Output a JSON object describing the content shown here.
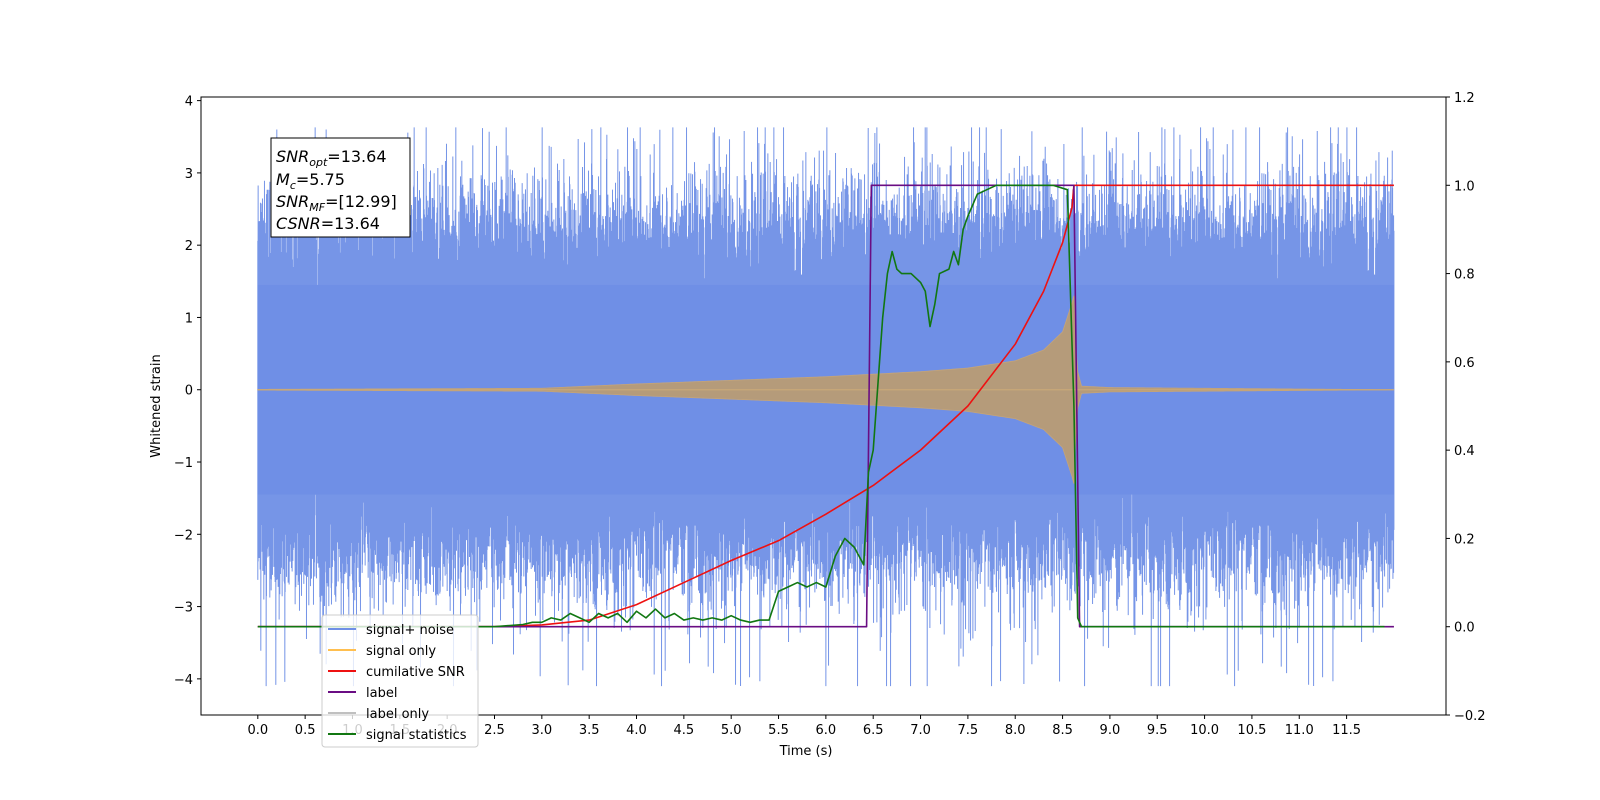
{
  "chart_data": {
    "type": "line",
    "title": "",
    "xlabel": "Time (s)",
    "ylabel": "Whitened strain",
    "ylabel_right": "",
    "xlim": [
      -0.6,
      12.55
    ],
    "ylim": [
      -4.5,
      4.05
    ],
    "ylim_right": [
      -0.2,
      1.2
    ],
    "x_ticks": [
      0.0,
      0.5,
      1.0,
      1.5,
      2.0,
      2.5,
      3.0,
      3.5,
      4.0,
      4.5,
      5.0,
      5.5,
      6.0,
      6.5,
      7.0,
      7.5,
      8.0,
      8.5,
      9.0,
      9.5,
      10.0,
      10.5,
      11.0,
      11.5
    ],
    "x_tick_labels": [
      "0.0",
      "0.5",
      "1.0",
      "1.5",
      "2.0",
      "2.5",
      "3.0",
      "3.5",
      "4.0",
      "4.5",
      "5.0",
      "5.5",
      "6.0",
      "6.5",
      "7.0",
      "7.5",
      "8.0",
      "8.5",
      "9.0",
      "9.5",
      "10.0",
      "10.5",
      "11.0",
      "11.5"
    ],
    "y_ticks": [
      4,
      3,
      2,
      1,
      0,
      -1,
      -2,
      -3,
      -4
    ],
    "y_tick_labels": [
      "4",
      "3",
      "2",
      "1",
      "0",
      "−1",
      "−2",
      "−3",
      "−4"
    ],
    "y_ticks_right": [
      1.2,
      1.0,
      0.8,
      0.6,
      0.4,
      0.2,
      0.0,
      -0.2
    ],
    "y_tick_labels_right": [
      "1.2",
      "1.0",
      "0.8",
      "0.6",
      "0.4",
      "0.2",
      "0.0",
      "−0.2"
    ],
    "grid": false,
    "legend_position": "lower-left",
    "annotation": {
      "snr_opt_symbol": "SNR",
      "snr_opt_sub": "opt",
      "snr_opt_value": "=13.64",
      "mc_symbol": "M",
      "mc_sub": "c",
      "mc_value": "=5.75",
      "snr_mf_symbol": "SNR",
      "snr_mf_sub": "MF",
      "snr_mf_value": "=[12.99]",
      "csnr_symbol": "CSNR",
      "csnr_value": "=13.64"
    },
    "series": [
      {
        "name": "signal+ noise",
        "axis": "left",
        "color": "#6f8fe6",
        "kind": "noise-band",
        "x_range": [
          0.0,
          12.0
        ],
        "typical_range": [
          -2.2,
          2.2
        ],
        "peak_max": 3.63,
        "peak_min": -4.1
      },
      {
        "name": "signal only",
        "axis": "left",
        "color": "#ffbf4f",
        "kind": "chirp",
        "x_range": [
          0.0,
          12.0
        ],
        "merger_time": 8.62,
        "envelope": [
          [
            0.0,
            0.005
          ],
          [
            3.0,
            0.02
          ],
          [
            4.0,
            0.08
          ],
          [
            5.0,
            0.13
          ],
          [
            6.0,
            0.18
          ],
          [
            7.0,
            0.25
          ],
          [
            7.5,
            0.3
          ],
          [
            8.0,
            0.4
          ],
          [
            8.3,
            0.55
          ],
          [
            8.5,
            0.8
          ],
          [
            8.6,
            1.2
          ],
          [
            8.62,
            1.3
          ],
          [
            8.65,
            0.3
          ],
          [
            8.7,
            0.05
          ],
          [
            9.0,
            0.03
          ],
          [
            12.0,
            0.0
          ]
        ]
      },
      {
        "name": "cumilative SNR",
        "axis": "right",
        "color": "#ee1111",
        "x": [
          0.0,
          1.0,
          2.0,
          2.5,
          3.0,
          3.5,
          4.0,
          4.5,
          5.0,
          5.5,
          6.0,
          6.5,
          7.0,
          7.5,
          8.0,
          8.3,
          8.5,
          8.6,
          8.62,
          12.0
        ],
        "y": [
          0.0,
          0.0,
          0.0,
          0.0,
          0.004,
          0.015,
          0.05,
          0.1,
          0.15,
          0.195,
          0.255,
          0.32,
          0.4,
          0.5,
          0.64,
          0.76,
          0.87,
          0.95,
          1.0,
          1.0
        ]
      },
      {
        "name": "label",
        "axis": "right",
        "color": "#6a0d83",
        "x": [
          0.0,
          6.43,
          6.48,
          8.62,
          8.68,
          12.0
        ],
        "y": [
          0.0,
          0.0,
          1.0,
          1.0,
          0.0,
          0.0
        ]
      },
      {
        "name": "label only",
        "axis": "right",
        "color": "#c0c0c0",
        "hidden_in_plot": true
      },
      {
        "name": "signal statistics",
        "axis": "right",
        "color": "#117711",
        "x": [
          0.0,
          0.5,
          1.0,
          1.5,
          2.0,
          2.5,
          2.8,
          2.9,
          3.0,
          3.1,
          3.2,
          3.3,
          3.4,
          3.5,
          3.6,
          3.7,
          3.8,
          3.9,
          4.0,
          4.1,
          4.2,
          4.3,
          4.4,
          4.5,
          4.6,
          4.7,
          4.8,
          4.9,
          5.0,
          5.1,
          5.2,
          5.3,
          5.4,
          5.5,
          5.6,
          5.7,
          5.8,
          5.9,
          6.0,
          6.1,
          6.2,
          6.3,
          6.4,
          6.45,
          6.5,
          6.55,
          6.6,
          6.65,
          6.7,
          6.75,
          6.8,
          6.9,
          7.0,
          7.05,
          7.1,
          7.15,
          7.2,
          7.3,
          7.35,
          7.4,
          7.45,
          7.5,
          7.6,
          7.7,
          7.8,
          7.9,
          8.0,
          8.2,
          8.4,
          8.55,
          8.62,
          8.66,
          8.7,
          9.0,
          10.0,
          11.0,
          11.9
        ],
        "y": [
          0.0,
          0.0,
          0.0,
          0.0,
          0.0,
          0.0,
          0.005,
          0.01,
          0.01,
          0.02,
          0.015,
          0.03,
          0.02,
          0.01,
          0.03,
          0.02,
          0.03,
          0.01,
          0.035,
          0.02,
          0.04,
          0.02,
          0.03,
          0.015,
          0.02,
          0.015,
          0.02,
          0.015,
          0.025,
          0.015,
          0.01,
          0.015,
          0.015,
          0.08,
          0.09,
          0.1,
          0.09,
          0.1,
          0.09,
          0.16,
          0.2,
          0.18,
          0.14,
          0.35,
          0.4,
          0.55,
          0.7,
          0.8,
          0.85,
          0.81,
          0.8,
          0.8,
          0.78,
          0.76,
          0.68,
          0.73,
          0.8,
          0.81,
          0.85,
          0.82,
          0.9,
          0.93,
          0.98,
          0.99,
          1.0,
          1.0,
          1.0,
          1.0,
          1.0,
          0.99,
          0.5,
          0.02,
          0.0,
          0.0,
          0.0,
          0.0,
          0.0
        ]
      }
    ]
  }
}
